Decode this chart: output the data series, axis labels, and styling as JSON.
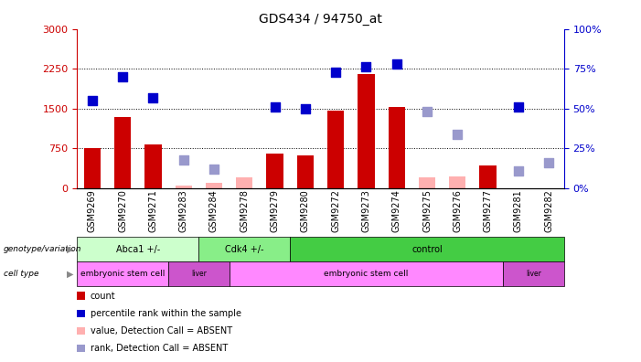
{
  "title": "GDS434 / 94750_at",
  "samples": [
    "GSM9269",
    "GSM9270",
    "GSM9271",
    "GSM9283",
    "GSM9284",
    "GSM9278",
    "GSM9279",
    "GSM9280",
    "GSM9272",
    "GSM9273",
    "GSM9274",
    "GSM9275",
    "GSM9276",
    "GSM9277",
    "GSM9281",
    "GSM9282"
  ],
  "count_values": [
    750,
    1350,
    830,
    null,
    null,
    null,
    650,
    620,
    1470,
    2150,
    1530,
    null,
    null,
    430,
    null,
    null
  ],
  "rank_values": [
    55,
    70,
    57,
    null,
    null,
    null,
    51,
    50,
    73,
    76,
    78,
    null,
    null,
    null,
    51,
    null
  ],
  "absent_count": [
    null,
    null,
    null,
    55,
    110,
    210,
    null,
    null,
    null,
    null,
    null,
    210,
    220,
    null,
    null,
    null
  ],
  "absent_rank": [
    null,
    null,
    null,
    18,
    12,
    null,
    null,
    null,
    null,
    null,
    null,
    48,
    34,
    null,
    11,
    16
  ],
  "ylim_left": [
    0,
    3000
  ],
  "ylim_right": [
    0,
    100
  ],
  "yticks_left": [
    0,
    750,
    1500,
    2250,
    3000
  ],
  "yticks_right": [
    0,
    25,
    50,
    75,
    100
  ],
  "bar_color_red": "#cc0000",
  "bar_color_pink": "#ffb0b0",
  "dot_color_blue": "#0000cc",
  "dot_color_lightblue": "#9999cc",
  "genotype_groups": [
    {
      "label": "Abca1 +/-",
      "start": 0,
      "end": 4,
      "color": "#ccffcc"
    },
    {
      "label": "Cdk4 +/-",
      "start": 4,
      "end": 7,
      "color": "#88ee88"
    },
    {
      "label": "control",
      "start": 7,
      "end": 16,
      "color": "#44cc44"
    }
  ],
  "celltype_groups": [
    {
      "label": "embryonic stem cell",
      "start": 0,
      "end": 3,
      "color": "#ff88ff"
    },
    {
      "label": "liver",
      "start": 3,
      "end": 5,
      "color": "#cc55cc"
    },
    {
      "label": "embryonic stem cell",
      "start": 5,
      "end": 14,
      "color": "#ff88ff"
    },
    {
      "label": "liver",
      "start": 14,
      "end": 16,
      "color": "#cc55cc"
    }
  ],
  "legend_items": [
    {
      "label": "count",
      "color": "#cc0000"
    },
    {
      "label": "percentile rank within the sample",
      "color": "#0000cc"
    },
    {
      "label": "value, Detection Call = ABSENT",
      "color": "#ffb0b0"
    },
    {
      "label": "rank, Detection Call = ABSENT",
      "color": "#9999cc"
    }
  ]
}
